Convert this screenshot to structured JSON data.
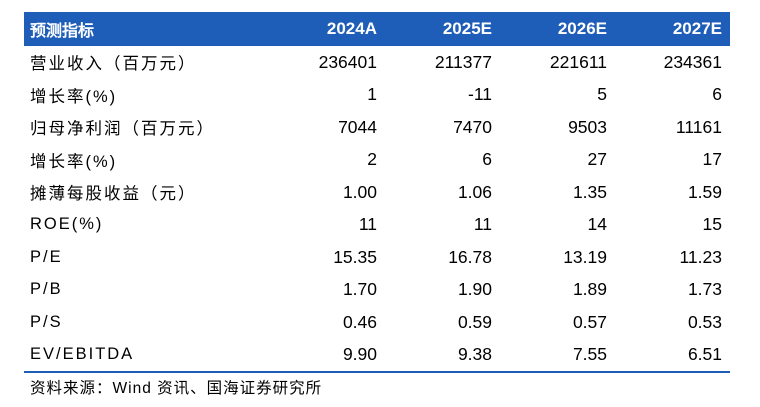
{
  "table": {
    "header": [
      "预测指标",
      "2024A",
      "2025E",
      "2026E",
      "2027E"
    ],
    "rows": [
      [
        "营业收入（百万元）",
        "236401",
        "211377",
        "221611",
        "234361"
      ],
      [
        "增长率(%)",
        "1",
        "-11",
        "5",
        "6"
      ],
      [
        "归母净利润（百万元）",
        "7044",
        "7470",
        "9503",
        "11161"
      ],
      [
        "增长率(%)",
        "2",
        "6",
        "27",
        "17"
      ],
      [
        "摊薄每股收益（元）",
        "1.00",
        "1.06",
        "1.35",
        "1.59"
      ],
      [
        "ROE(%)",
        "11",
        "11",
        "14",
        "15"
      ],
      [
        "P/E",
        "15.35",
        "16.78",
        "13.19",
        "11.23"
      ],
      [
        "P/B",
        "1.70",
        "1.90",
        "1.89",
        "1.73"
      ],
      [
        "P/S",
        "0.46",
        "0.59",
        "0.57",
        "0.53"
      ],
      [
        "EV/EBITDA",
        "9.90",
        "9.38",
        "7.55",
        "6.51"
      ]
    ],
    "header_color": "#1f5eb8"
  },
  "source": "资料来源：Wind 资讯、国海证券研究所"
}
